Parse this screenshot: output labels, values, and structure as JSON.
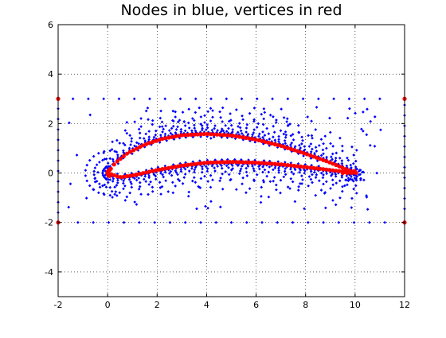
{
  "chart_data": {
    "type": "scatter",
    "title": "Nodes in blue, vertices in red",
    "xlabel": "",
    "ylabel": "",
    "xlim": [
      -2,
      12
    ],
    "ylim": [
      -5,
      6
    ],
    "xticks": [
      "-2",
      "0",
      "2",
      "4",
      "6",
      "8",
      "10",
      "12"
    ],
    "yticks": [
      "-4",
      "-2",
      "0",
      "2",
      "4",
      "6"
    ],
    "grid": true,
    "grid_style": "dotted",
    "colors": {
      "nodes": "#0000ff",
      "vertices": "#ff0000"
    },
    "vertices": {
      "corners": [
        [
          -2,
          3
        ],
        [
          12,
          3
        ],
        [
          -2,
          -2
        ],
        [
          12,
          -2
        ]
      ],
      "airfoil": {
        "leading_edge": [
          0.0,
          0.0
        ],
        "trailing_edge": [
          10.0,
          0.0
        ],
        "upper": [
          [
            0.0,
            0.0
          ],
          [
            0.3,
            0.4
          ],
          [
            0.8,
            0.8
          ],
          [
            1.5,
            1.15
          ],
          [
            2.2,
            1.38
          ],
          [
            3.0,
            1.53
          ],
          [
            4.0,
            1.58
          ],
          [
            5.0,
            1.52
          ],
          [
            6.0,
            1.35
          ],
          [
            7.0,
            1.1
          ],
          [
            8.0,
            0.78
          ],
          [
            9.0,
            0.42
          ],
          [
            10.0,
            0.0
          ]
        ],
        "lower": [
          [
            0.0,
            0.0
          ],
          [
            0.5,
            -0.17
          ],
          [
            1.0,
            -0.1
          ],
          [
            2.0,
            0.12
          ],
          [
            3.0,
            0.3
          ],
          [
            4.0,
            0.42
          ],
          [
            5.0,
            0.45
          ],
          [
            6.0,
            0.42
          ],
          [
            7.0,
            0.35
          ],
          [
            8.0,
            0.24
          ],
          [
            9.0,
            0.12
          ],
          [
            10.0,
            0.0
          ]
        ]
      }
    },
    "nodes": {
      "boundary_top_y": 3,
      "boundary_bottom_y": -2,
      "boundary_x": [
        -2,
        12
      ],
      "description_points": "dense cloud of mesh nodes surrounding the airfoil between y = -1.5 and y = 2.5"
    }
  }
}
